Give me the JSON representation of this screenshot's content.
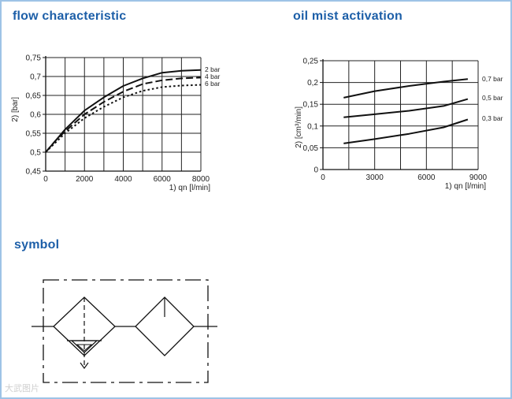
{
  "titles": {
    "flow": "flow characteristic",
    "oil": "oil mist activation",
    "symbol": "symbol"
  },
  "watermark": "大武图片",
  "chart_data": [
    {
      "type": "line",
      "title": "flow characteristic",
      "xlabel": "1)  qn [l/min]",
      "ylabel": "2)  [bar]",
      "xlim": [
        0,
        8000
      ],
      "ylim": [
        0.45,
        0.75
      ],
      "xticks": [
        0,
        2000,
        4000,
        6000,
        8000
      ],
      "xtick_labels": [
        "0",
        "2000",
        "4000",
        "6000",
        "8000"
      ],
      "yticks": [
        0.45,
        0.5,
        0.55,
        0.6,
        0.65,
        0.7,
        0.75
      ],
      "ytick_labels": [
        "0,45",
        "0,5",
        "0,55",
        "0,6",
        "0,65",
        "0,7",
        "0,75"
      ],
      "grid": true,
      "series": [
        {
          "name": "2 bar",
          "style": "solid",
          "x": [
            0,
            500,
            1000,
            2000,
            3000,
            4000,
            5000,
            6000,
            7000,
            8000
          ],
          "y": [
            0.5,
            0.53,
            0.56,
            0.61,
            0.645,
            0.675,
            0.695,
            0.71,
            0.715,
            0.717
          ]
        },
        {
          "name": "4 bar",
          "style": "dashed",
          "x": [
            0,
            500,
            1000,
            2000,
            3000,
            4000,
            5000,
            6000,
            7000,
            8000
          ],
          "y": [
            0.5,
            0.53,
            0.555,
            0.6,
            0.633,
            0.66,
            0.68,
            0.69,
            0.695,
            0.697
          ]
        },
        {
          "name": "6 bar",
          "style": "dotted",
          "x": [
            0,
            500,
            1000,
            2000,
            3000,
            4000,
            5000,
            6000,
            7000,
            8000
          ],
          "y": [
            0.5,
            0.525,
            0.55,
            0.59,
            0.62,
            0.645,
            0.662,
            0.672,
            0.676,
            0.678
          ]
        }
      ]
    },
    {
      "type": "line",
      "title": "oil mist activation",
      "xlabel": "1)  qn [l/min]",
      "ylabel": "2)  [cm³/min]",
      "xlim": [
        0,
        9000
      ],
      "ylim": [
        0,
        0.25
      ],
      "xticks": [
        0,
        3000,
        6000,
        9000
      ],
      "xtick_labels": [
        "0",
        "3000",
        "6000",
        "9000"
      ],
      "yticks": [
        0,
        0.05,
        0.1,
        0.15,
        0.2,
        0.25
      ],
      "ytick_labels": [
        "0",
        "0,05",
        "0,1",
        "0,15",
        "0,2",
        "0,25"
      ],
      "grid": true,
      "series": [
        {
          "name": "0,7 bar",
          "style": "solid",
          "x": [
            1200,
            3000,
            5000,
            7000,
            8400
          ],
          "y": [
            0.165,
            0.18,
            0.192,
            0.202,
            0.208
          ]
        },
        {
          "name": "0,5 bar",
          "style": "solid",
          "x": [
            1200,
            3000,
            5000,
            7000,
            8400
          ],
          "y": [
            0.12,
            0.127,
            0.135,
            0.146,
            0.162
          ]
        },
        {
          "name": "0,3 bar",
          "style": "solid",
          "x": [
            1200,
            3000,
            5000,
            7000,
            8400
          ],
          "y": [
            0.06,
            0.07,
            0.082,
            0.097,
            0.115
          ]
        }
      ]
    }
  ]
}
